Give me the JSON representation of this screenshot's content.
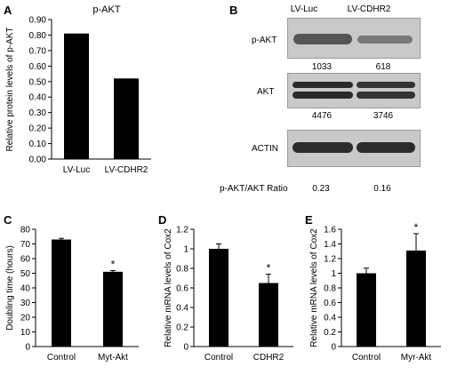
{
  "panels": {
    "A": "A",
    "B": "B",
    "C": "C",
    "D": "D",
    "E": "E"
  },
  "chart_data": [
    {
      "id": "A",
      "type": "bar",
      "title": "p-AKT",
      "ylabel": "Relative protein levels of p-AKT",
      "categories": [
        "LV-Luc",
        "LV-CDHR2"
      ],
      "values": [
        0.81,
        0.52
      ],
      "errors": null,
      "ylim": [
        0,
        0.9
      ],
      "yticks": [
        0.0,
        0.1,
        0.2,
        0.3,
        0.4,
        0.5,
        0.6,
        0.7,
        0.8,
        0.9
      ],
      "ytick_labels": [
        "0.00",
        "0.10",
        "0.20",
        "0.30",
        "0.40",
        "0.50",
        "0.60",
        "0.70",
        "0.80",
        "0.90"
      ],
      "annotations": []
    },
    {
      "id": "C",
      "type": "bar",
      "title": "",
      "ylabel": "Doubling time (hours)",
      "categories": [
        "Control",
        "Myt-Akt"
      ],
      "values": [
        73,
        51
      ],
      "errors": [
        0.8,
        0.8
      ],
      "ylim": [
        0,
        80
      ],
      "yticks": [
        0,
        10,
        20,
        30,
        40,
        50,
        60,
        70,
        80
      ],
      "ytick_labels": [
        "0",
        "10",
        "20",
        "30",
        "40",
        "50",
        "60",
        "70",
        "80"
      ],
      "annotations": [
        "",
        "*"
      ]
    },
    {
      "id": "D",
      "type": "bar",
      "title": "",
      "ylabel": "Relative mRNA levels of Cox2",
      "categories": [
        "Control",
        "CDHR2"
      ],
      "values": [
        1.0,
        0.65
      ],
      "errors": [
        0.05,
        0.09
      ],
      "ylim": [
        0,
        1.2
      ],
      "yticks": [
        0,
        0.2,
        0.4,
        0.6,
        0.8,
        1.0,
        1.2
      ],
      "ytick_labels": [
        "0",
        "0.2",
        "0.4",
        "0.6",
        "0.8",
        "1",
        "1.2"
      ],
      "annotations": [
        "",
        "*"
      ]
    },
    {
      "id": "E",
      "type": "bar",
      "title": "",
      "ylabel": "Relative mRNA levels of Cox2",
      "categories": [
        "Control",
        "Myr-Akt"
      ],
      "values": [
        1.0,
        1.31
      ],
      "errors": [
        0.07,
        0.23
      ],
      "ylim": [
        0,
        1.6
      ],
      "yticks": [
        0,
        0.2,
        0.4,
        0.6,
        0.8,
        1.0,
        1.2,
        1.4,
        1.6
      ],
      "ytick_labels": [
        "0",
        "0.2",
        "0.4",
        "0.6",
        "0.8",
        "1",
        "1.2",
        "1.4",
        "1.6"
      ],
      "annotations": [
        "",
        "*"
      ]
    }
  ],
  "blot": {
    "lanes": [
      "LV-Luc",
      "LV-CDHR2"
    ],
    "rows": [
      {
        "label": "p-AKT",
        "quant": [
          "1033",
          "618"
        ]
      },
      {
        "label": "AKT",
        "quant": [
          "4476",
          "3746"
        ]
      },
      {
        "label": "ACTIN",
        "quant": [
          "",
          ""
        ]
      }
    ],
    "ratio_label": "p-AKT/AKT Ratio",
    "ratio_values": [
      "0.23",
      "0.16"
    ]
  }
}
